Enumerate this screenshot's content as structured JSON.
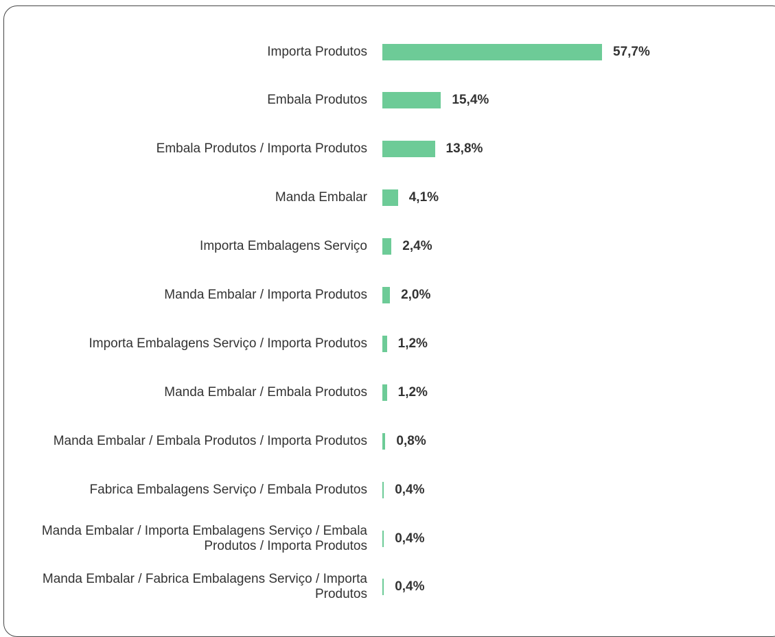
{
  "chart_data": {
    "type": "bar",
    "orientation": "horizontal",
    "color": "#6dcb97",
    "categories": [
      "Importa Produtos",
      "Embala Produtos",
      "Embala Produtos / Importa Produtos",
      "Manda Embalar",
      "Importa Embalagens Serviço",
      "Manda Embalar / Importa Produtos",
      "Importa Embalagens Serviço / Importa Produtos",
      "Manda Embalar / Embala Produtos",
      "Manda Embalar / Embala Produtos / Importa Produtos",
      "Fabrica Embalagens Serviço / Embala Produtos",
      "Manda Embalar / Importa Embalagens Serviço / Embala Produtos / Importa Produtos",
      "Manda Embalar / Fabrica Embalagens Serviço / Importa Produtos"
    ],
    "values": [
      57.7,
      15.4,
      13.8,
      4.1,
      2.4,
      2.0,
      1.2,
      1.2,
      0.8,
      0.4,
      0.4,
      0.4
    ],
    "value_labels": [
      "57,7%",
      "15,4%",
      "13,8%",
      "4,1%",
      "2,4%",
      "2,0%",
      "1,2%",
      "1,2%",
      "0,8%",
      "0,4%",
      "0,4%",
      "0,4%"
    ]
  }
}
